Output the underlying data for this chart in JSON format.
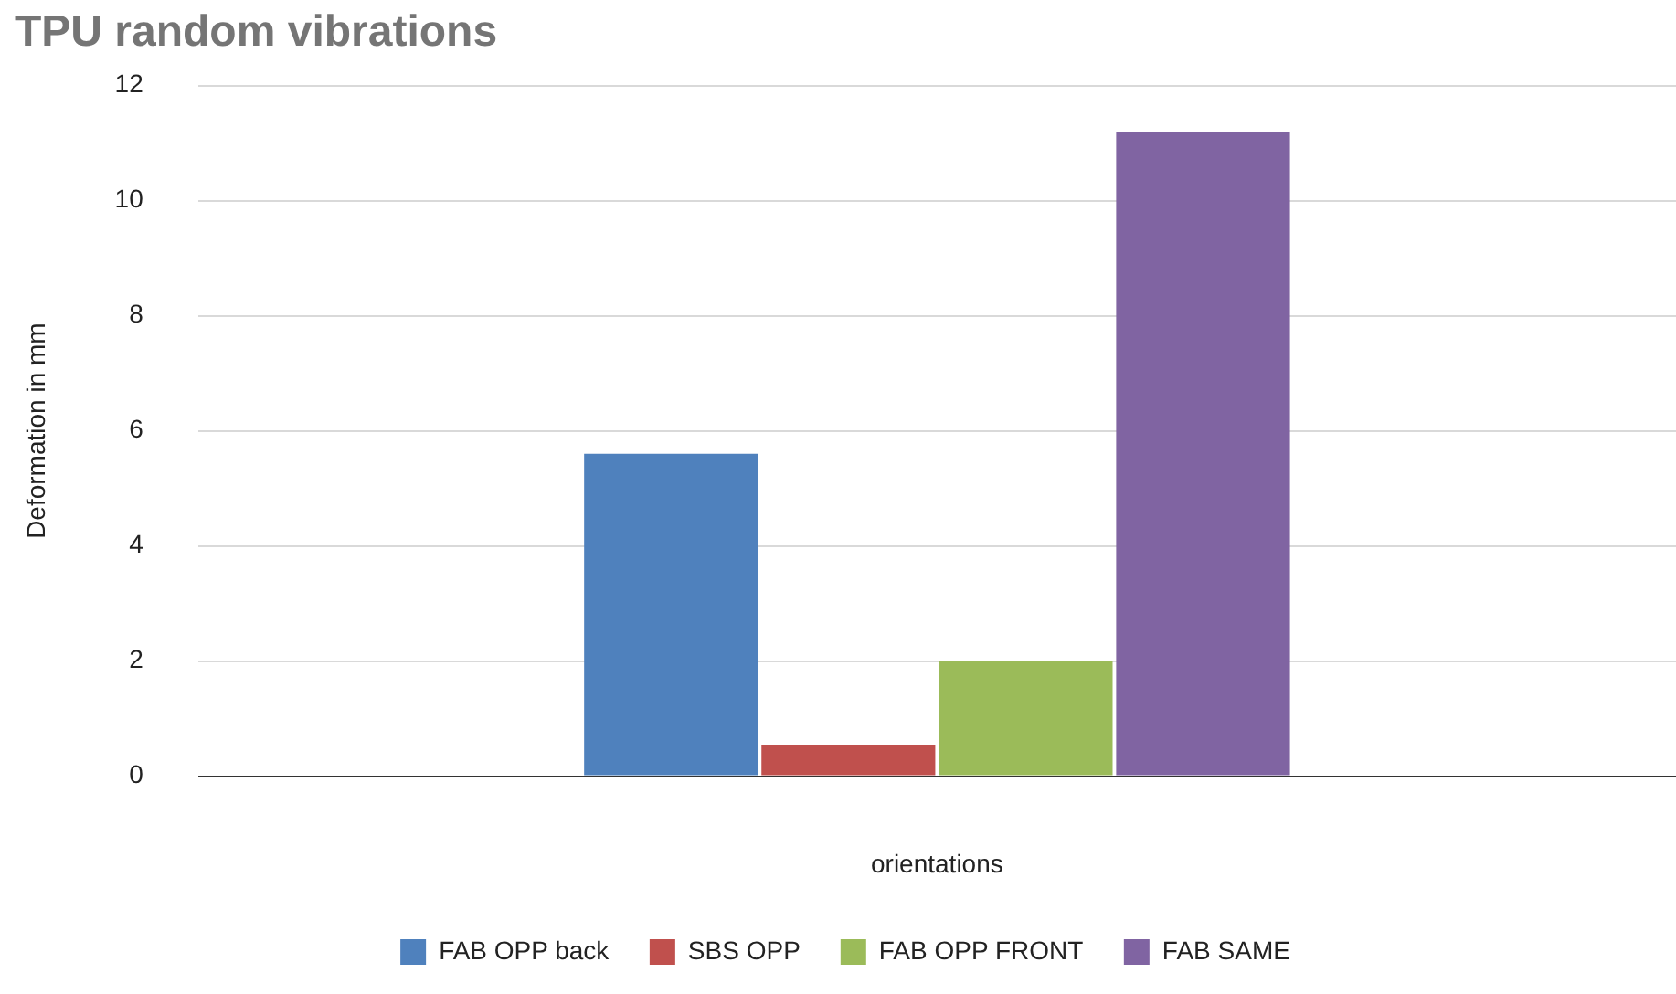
{
  "chart_data": {
    "type": "bar",
    "title": "TPU random vibrations",
    "xlabel": "orientations",
    "ylabel": "Deformation in mm",
    "categories": [
      null
    ],
    "series": [
      {
        "name": "FAB OPP back",
        "color": "#4f81bd",
        "values": [
          5.6
        ]
      },
      {
        "name": "SBS OPP",
        "color": "#c0504d",
        "values": [
          0.55
        ]
      },
      {
        "name": "FAB OPP FRONT",
        "color": "#9bbb59",
        "values": [
          2
        ]
      },
      {
        "name": "FAB SAME",
        "color": "#8064a2",
        "values": [
          11.2
        ]
      }
    ],
    "ylim": [
      0,
      12
    ],
    "yticks": [
      0,
      2,
      4,
      6,
      8,
      10,
      12
    ],
    "grid": "y",
    "legend": "bottom"
  }
}
